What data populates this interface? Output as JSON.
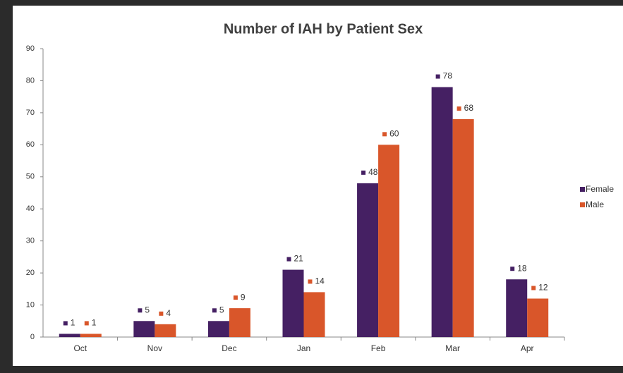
{
  "chart_data": {
    "type": "bar",
    "title": "Number of IAH by Patient Sex",
    "categories": [
      "Oct",
      "Nov",
      "Dec",
      "Jan",
      "Feb",
      "Mar",
      "Apr"
    ],
    "series": [
      {
        "name": "Female",
        "color": "#452063",
        "values": [
          1,
          5,
          5,
          21,
          48,
          78,
          18
        ]
      },
      {
        "name": "Male",
        "color": "#d9562a",
        "values": [
          1,
          4,
          9,
          14,
          60,
          68,
          12
        ]
      }
    ],
    "ylim": [
      0,
      90
    ],
    "yticks": [
      0,
      10,
      20,
      30,
      40,
      50,
      60,
      70,
      80,
      90
    ],
    "legend": "right",
    "data_labels": true
  }
}
